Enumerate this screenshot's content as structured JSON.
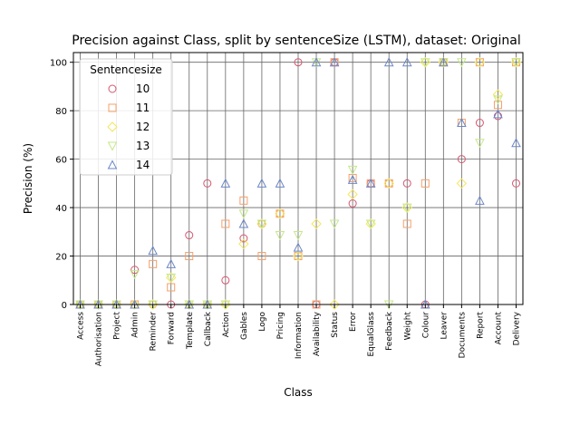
{
  "chart_data": {
    "type": "scatter",
    "title": "Precision against Class, split by sentenceSize (LSTM), dataset: Original",
    "xlabel": "Class",
    "ylabel": "Precision (%)",
    "ylim": [
      0,
      104
    ],
    "yticks": [
      0,
      20,
      40,
      60,
      80,
      100
    ],
    "grid": true,
    "legend": {
      "title": "Sentencesize",
      "placement": "top-left"
    },
    "categories": [
      "Access",
      "Authorisation",
      "Project",
      "Admin",
      "Reminder",
      "Forward",
      "Template",
      "Callback",
      "Action",
      "Gables",
      "Logo",
      "Pricing",
      "Information",
      "Availability",
      "Status",
      "Error",
      "EqualGlass",
      "Feedback",
      "Weight",
      "Colour",
      "Leaver",
      "Documents",
      "Report",
      "Account",
      "Delivery"
    ],
    "series": [
      {
        "name": "10",
        "marker": "circle",
        "color": "#d6556f",
        "values": [
          0,
          0,
          0,
          14.3,
          0,
          0,
          28.6,
          50,
          10,
          27.3,
          33.3,
          37.5,
          100,
          0,
          100,
          41.7,
          50,
          50,
          50,
          0,
          100,
          60,
          75,
          77.8,
          50
        ]
      },
      {
        "name": "11",
        "marker": "square",
        "color": "#f4a06a",
        "values": [
          0,
          0,
          0,
          0,
          16.7,
          7.1,
          20,
          0,
          33.3,
          42.9,
          20,
          37.5,
          20,
          0,
          100,
          52.2,
          50,
          50,
          33.3,
          50,
          100,
          75,
          100,
          82.4,
          100
        ]
      },
      {
        "name": "12",
        "marker": "diamond",
        "color": "#f5e65a",
        "values": [
          0,
          0,
          0,
          0,
          0,
          11.1,
          0,
          0,
          0,
          25,
          33.3,
          37.5,
          20,
          33.3,
          0,
          45.5,
          33.3,
          50,
          40,
          100,
          100,
          50,
          100,
          86.7,
          100
        ]
      },
      {
        "name": "13",
        "marker": "triangle-down",
        "color": "#c5e88a",
        "values": [
          0,
          0,
          0,
          12.5,
          0,
          11.1,
          0,
          0,
          0,
          37.5,
          33.3,
          28.6,
          28.6,
          100,
          33.3,
          55.6,
          33.3,
          0,
          40,
          100,
          100,
          100,
          66.7,
          84.6,
          100
        ]
      },
      {
        "name": "14",
        "marker": "triangle-up",
        "color": "#6b87c8",
        "values": [
          0,
          0,
          0,
          0,
          22.2,
          16.7,
          0,
          0,
          50,
          33.3,
          50,
          50,
          23.5,
          100,
          100,
          51.5,
          50,
          100,
          100,
          0,
          100,
          75,
          42.9,
          78.6,
          66.7
        ]
      }
    ]
  }
}
